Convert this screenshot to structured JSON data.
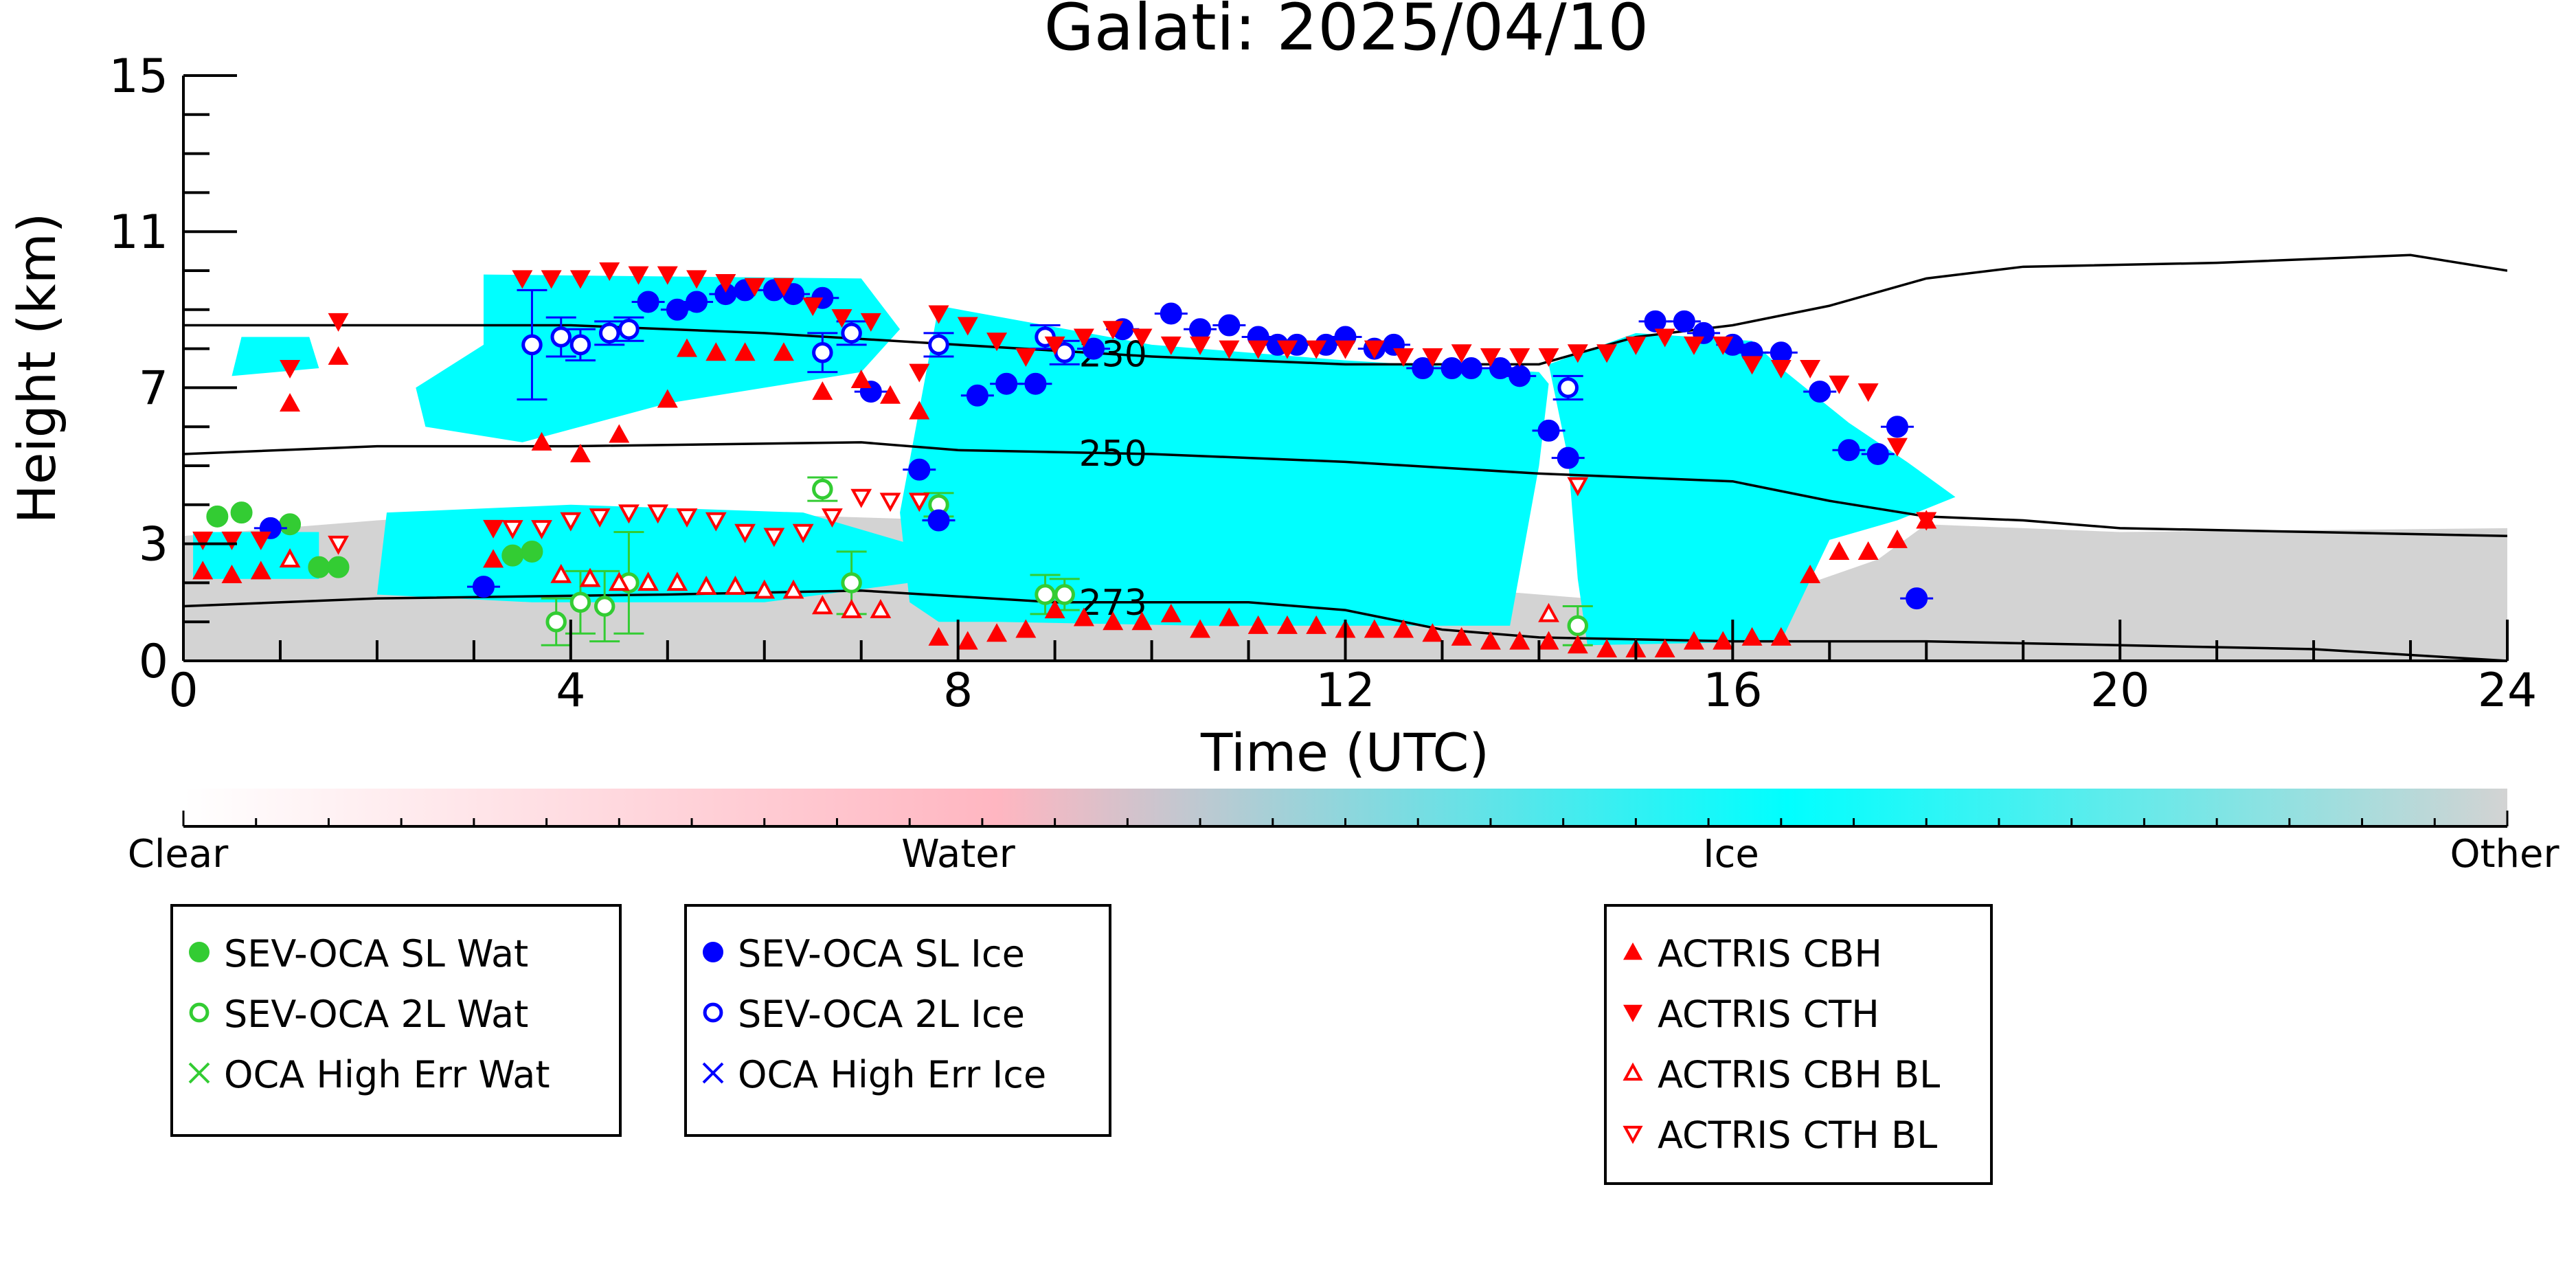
{
  "chart_data": {
    "type": "scatter",
    "title": "Galati: 2025/04/10",
    "xlabel": "Time (UTC)",
    "ylabel": "Height (km)",
    "xlim": [
      0,
      24
    ],
    "ylim": [
      0,
      15
    ],
    "xticks": [
      "0",
      "4",
      "8",
      "12",
      "16",
      "20",
      "24"
    ],
    "yticks": [
      "0",
      "3",
      "7",
      "11",
      "15"
    ],
    "grid": false,
    "colorbar": {
      "labels": [
        "Clear",
        "Water",
        "Ice",
        "Other"
      ],
      "colors": {
        "clear": "#ffffff",
        "water": "#ffb6c1",
        "ice": "#00ffff",
        "other": "#d3d3d3"
      }
    },
    "contours": [
      {
        "label": "230",
        "points": [
          [
            0,
            8.6
          ],
          [
            4,
            8.6
          ],
          [
            6,
            8.4
          ],
          [
            8,
            8.1
          ],
          [
            10,
            7.8
          ],
          [
            12,
            7.6
          ],
          [
            14,
            7.6
          ],
          [
            15,
            8.3
          ],
          [
            16,
            8.6
          ],
          [
            17,
            9.1
          ],
          [
            18,
            9.8
          ],
          [
            19,
            10.1
          ],
          [
            21,
            10.2
          ],
          [
            23,
            10.4
          ],
          [
            24,
            10.0
          ]
        ]
      },
      {
        "label": "250",
        "points": [
          [
            0,
            5.3
          ],
          [
            2,
            5.5
          ],
          [
            4,
            5.5
          ],
          [
            7,
            5.6
          ],
          [
            8,
            5.4
          ],
          [
            10,
            5.3
          ],
          [
            12,
            5.1
          ],
          [
            14,
            4.8
          ],
          [
            16,
            4.6
          ],
          [
            17,
            4.1
          ],
          [
            18,
            3.7
          ],
          [
            19,
            3.6
          ],
          [
            20,
            3.4
          ],
          [
            22,
            3.3
          ],
          [
            24,
            3.2
          ]
        ]
      },
      {
        "label": "273",
        "points": [
          [
            0,
            1.4
          ],
          [
            2,
            1.6
          ],
          [
            5,
            1.7
          ],
          [
            7,
            1.8
          ],
          [
            9,
            1.5
          ],
          [
            11,
            1.5
          ],
          [
            12,
            1.3
          ],
          [
            13,
            0.8
          ],
          [
            14,
            0.6
          ],
          [
            16,
            0.5
          ],
          [
            18,
            0.5
          ],
          [
            20,
            0.4
          ],
          [
            22,
            0.3
          ],
          [
            24,
            0.0
          ]
        ]
      }
    ],
    "mask_regions": [
      {
        "class": "other",
        "x": [
          0,
          24
        ],
        "y_bottom": [
          0,
          0,
          0,
          0,
          0
        ],
        "y_top_x": [
          0,
          2,
          4,
          8,
          12,
          16,
          17.5,
          18,
          20,
          24
        ],
        "y_top": [
          3.2,
          3.6,
          3.9,
          3.6,
          2.1,
          1.3,
          2.6,
          3.5,
          3.3,
          3.4
        ]
      },
      {
        "class": "ice",
        "polygon": [
          [
            0.1,
            3.3
          ],
          [
            1.4,
            3.3
          ],
          [
            1.4,
            2.1
          ],
          [
            0.1,
            2.1
          ]
        ]
      },
      {
        "class": "ice",
        "polygon": [
          [
            0.6,
            8.3
          ],
          [
            1.3,
            8.3
          ],
          [
            1.4,
            7.5
          ],
          [
            0.5,
            7.3
          ]
        ]
      },
      {
        "class": "ice",
        "polygon": [
          [
            3.1,
            9.9
          ],
          [
            7.0,
            9.8
          ],
          [
            7.4,
            8.5
          ],
          [
            7.0,
            7.4
          ],
          [
            5.0,
            6.6
          ],
          [
            3.5,
            5.6
          ],
          [
            2.5,
            6.0
          ],
          [
            2.4,
            7.0
          ],
          [
            3.1,
            8.1
          ]
        ]
      },
      {
        "class": "ice",
        "polygon": [
          [
            2.1,
            3.8
          ],
          [
            4.0,
            4.0
          ],
          [
            6.4,
            3.8
          ],
          [
            7.5,
            3.0
          ],
          [
            7.5,
            2.0
          ],
          [
            6.0,
            1.5
          ],
          [
            3.6,
            1.5
          ],
          [
            2.0,
            1.7
          ]
        ]
      },
      {
        "class": "ice",
        "polygon": [
          [
            7.4,
            3.8
          ],
          [
            7.8,
            9.1
          ],
          [
            10.0,
            8.1
          ],
          [
            12.0,
            7.7
          ],
          [
            14.0,
            7.4
          ],
          [
            14.1,
            7.1
          ],
          [
            14.0,
            5.0
          ],
          [
            13.7,
            0.9
          ],
          [
            10.5,
            0.9
          ],
          [
            8.4,
            1.0
          ],
          [
            7.8,
            1.0
          ],
          [
            7.5,
            1.5
          ]
        ]
      },
      {
        "class": "ice",
        "polygon": [
          [
            14.1,
            7.6
          ],
          [
            15.0,
            8.4
          ],
          [
            16.2,
            8.2
          ],
          [
            16.5,
            7.5
          ],
          [
            17.2,
            6.1
          ],
          [
            17.8,
            5.1
          ],
          [
            18.3,
            4.2
          ],
          [
            17.7,
            3.6
          ],
          [
            17.0,
            3.1
          ],
          [
            16.5,
            0.5
          ],
          [
            14.5,
            0.4
          ],
          [
            14.4,
            2.1
          ],
          [
            14.3,
            5.2
          ]
        ]
      }
    ],
    "series": [
      {
        "name": "SEV-OCA SL Wat",
        "marker": "circle-filled",
        "color": "#33cc33",
        "x": [
          0.35,
          0.6,
          1.1,
          1.4,
          1.6,
          3.4,
          3.6
        ],
        "y": [
          3.7,
          3.8,
          3.5,
          2.4,
          2.4,
          2.7,
          2.8
        ]
      },
      {
        "name": "SEV-OCA 2L Wat",
        "marker": "circle-open",
        "color": "#33cc33",
        "x": [
          3.85,
          4.1,
          4.35,
          4.6,
          6.6,
          6.9,
          7.8,
          8.9,
          9.1,
          14.4
        ],
        "y": [
          1.0,
          1.5,
          1.4,
          2.0,
          4.4,
          2.0,
          4.0,
          1.7,
          1.7,
          0.9
        ],
        "err": [
          0.6,
          0.8,
          0.9,
          1.3,
          0.3,
          0.8,
          0.3,
          0.5,
          0.4,
          0.5
        ]
      },
      {
        "name": "OCA High Err Wat",
        "marker": "x",
        "color": "#33cc33",
        "x": [],
        "y": []
      },
      {
        "name": "SEV-OCA SL Ice",
        "marker": "circle-filled",
        "color": "#0000ff",
        "x": [
          0.9,
          3.1,
          4.8,
          5.1,
          5.3,
          5.6,
          5.8,
          6.1,
          6.3,
          6.6,
          7.1,
          7.6,
          7.8,
          8.2,
          8.5,
          8.8,
          9.4,
          9.7,
          10.2,
          10.5,
          10.8,
          11.1,
          11.3,
          11.5,
          11.8,
          12.0,
          12.3,
          12.5,
          12.8,
          13.1,
          13.3,
          13.6,
          13.8,
          14.1,
          14.3,
          15.2,
          15.5,
          15.7,
          16.0,
          16.2,
          16.5,
          16.9,
          17.2,
          17.5,
          17.7,
          17.9
        ],
        "y": [
          3.4,
          1.9,
          9.2,
          9.0,
          9.2,
          9.4,
          9.5,
          9.5,
          9.4,
          9.3,
          6.9,
          4.9,
          3.6,
          6.8,
          7.1,
          7.1,
          8.0,
          8.5,
          8.9,
          8.5,
          8.6,
          8.3,
          8.1,
          8.1,
          8.1,
          8.3,
          8.0,
          8.1,
          7.5,
          7.5,
          7.5,
          7.5,
          7.3,
          5.9,
          5.2,
          8.7,
          8.7,
          8.4,
          8.1,
          7.9,
          7.9,
          6.9,
          5.4,
          5.3,
          6.0,
          1.6
        ]
      },
      {
        "name": "SEV-OCA 2L Ice",
        "marker": "circle-open",
        "color": "#0000ff",
        "x": [
          3.6,
          3.9,
          4.1,
          4.4,
          4.6,
          6.6,
          6.9,
          7.8,
          8.9,
          9.1,
          14.3
        ],
        "y": [
          8.1,
          8.3,
          8.1,
          8.4,
          8.5,
          7.9,
          8.4,
          8.1,
          8.3,
          7.9,
          7.0
        ],
        "err": [
          1.4,
          0.5,
          0.4,
          0.3,
          0.3,
          0.5,
          0.3,
          0.3,
          0.3,
          0.3,
          0.3
        ]
      },
      {
        "name": "OCA High Err Ice",
        "marker": "x",
        "color": "#0000ff",
        "x": [],
        "y": []
      },
      {
        "name": "ACTRIS CBH",
        "marker": "triangle-up-filled",
        "color": "#ff0000",
        "x": [
          0.2,
          0.5,
          0.8,
          1.1,
          1.6,
          3.2,
          3.7,
          4.1,
          4.5,
          5.0,
          5.2,
          5.5,
          5.8,
          6.2,
          6.6,
          7.0,
          7.3,
          7.6,
          7.8,
          8.1,
          8.4,
          8.7,
          9.0,
          9.3,
          9.6,
          9.9,
          10.2,
          10.5,
          10.8,
          11.1,
          11.4,
          11.7,
          12.0,
          12.3,
          12.6,
          12.9,
          13.2,
          13.5,
          13.8,
          14.1,
          14.4,
          14.7,
          15.0,
          15.3,
          15.6,
          15.9,
          16.2,
          16.5,
          16.8,
          17.1,
          17.4,
          17.7,
          18.0
        ],
        "y": [
          2.3,
          2.2,
          2.3,
          6.6,
          7.8,
          2.6,
          5.6,
          5.3,
          5.8,
          6.7,
          8.0,
          7.9,
          7.9,
          7.9,
          6.9,
          7.2,
          6.8,
          6.4,
          0.6,
          0.5,
          0.7,
          0.8,
          1.3,
          1.1,
          1.0,
          1.0,
          1.2,
          0.8,
          1.1,
          0.9,
          0.9,
          0.9,
          0.8,
          0.8,
          0.8,
          0.7,
          0.6,
          0.5,
          0.5,
          0.5,
          0.4,
          0.3,
          0.3,
          0.3,
          0.5,
          0.5,
          0.6,
          0.6,
          2.2,
          2.8,
          2.8,
          3.1,
          3.6
        ]
      },
      {
        "name": "ACTRIS CTH",
        "marker": "triangle-down-filled",
        "color": "#ff0000",
        "x": [
          0.2,
          0.5,
          0.8,
          1.1,
          1.6,
          3.2,
          3.5,
          3.8,
          4.1,
          4.4,
          4.7,
          5.0,
          5.3,
          5.6,
          5.9,
          6.2,
          6.5,
          6.8,
          7.1,
          7.6,
          7.8,
          8.1,
          8.4,
          8.7,
          9.0,
          9.3,
          9.6,
          9.9,
          10.2,
          10.5,
          10.8,
          11.1,
          11.4,
          11.7,
          12.0,
          12.3,
          12.6,
          12.9,
          13.2,
          13.5,
          13.8,
          14.1,
          14.4,
          14.7,
          15.0,
          15.3,
          15.6,
          15.9,
          16.2,
          16.5,
          16.8,
          17.1,
          17.4,
          17.7,
          18.0
        ],
        "y": [
          3.1,
          3.1,
          3.1,
          7.5,
          8.7,
          3.4,
          9.8,
          9.8,
          9.8,
          10.0,
          9.9,
          9.9,
          9.8,
          9.7,
          9.6,
          9.6,
          9.1,
          8.8,
          8.7,
          7.4,
          8.9,
          8.6,
          8.2,
          7.8,
          8.1,
          8.3,
          8.5,
          8.3,
          8.1,
          8.1,
          8.0,
          8.0,
          8.0,
          8.0,
          8.0,
          8.0,
          7.8,
          7.8,
          7.9,
          7.8,
          7.8,
          7.8,
          7.9,
          7.9,
          8.1,
          8.3,
          8.1,
          8.1,
          7.6,
          7.5,
          7.5,
          7.1,
          6.9,
          5.5,
          3.6
        ]
      },
      {
        "name": "ACTRIS CBH BL",
        "marker": "triangle-up-open",
        "color": "#ff0000",
        "x": [
          1.1,
          3.9,
          4.2,
          4.5,
          4.8,
          5.1,
          5.4,
          5.7,
          6.0,
          6.3,
          6.6,
          6.9,
          7.2,
          14.1
        ],
        "y": [
          2.6,
          2.2,
          2.1,
          2.0,
          2.0,
          2.0,
          1.9,
          1.9,
          1.8,
          1.8,
          1.4,
          1.3,
          1.3,
          1.2
        ]
      },
      {
        "name": "ACTRIS CTH BL",
        "marker": "triangle-down-open",
        "color": "#ff0000",
        "x": [
          1.6,
          3.4,
          3.7,
          4.0,
          4.3,
          4.6,
          4.9,
          5.2,
          5.5,
          5.8,
          6.1,
          6.4,
          6.7,
          7.0,
          7.3,
          7.6,
          14.4
        ],
        "y": [
          3.0,
          3.4,
          3.4,
          3.6,
          3.7,
          3.8,
          3.8,
          3.7,
          3.6,
          3.3,
          3.2,
          3.3,
          3.7,
          4.2,
          4.1,
          4.1,
          4.5
        ]
      }
    ],
    "legends": [
      [
        "SEV-OCA SL Wat",
        "SEV-OCA 2L Wat",
        "OCA High Err Wat"
      ],
      [
        "SEV-OCA SL Ice",
        "SEV-OCA 2L Ice",
        "OCA High Err Ice"
      ],
      [
        "ACTRIS CBH",
        "ACTRIS CTH",
        "ACTRIS CBH BL",
        "ACTRIS CTH BL"
      ]
    ]
  }
}
